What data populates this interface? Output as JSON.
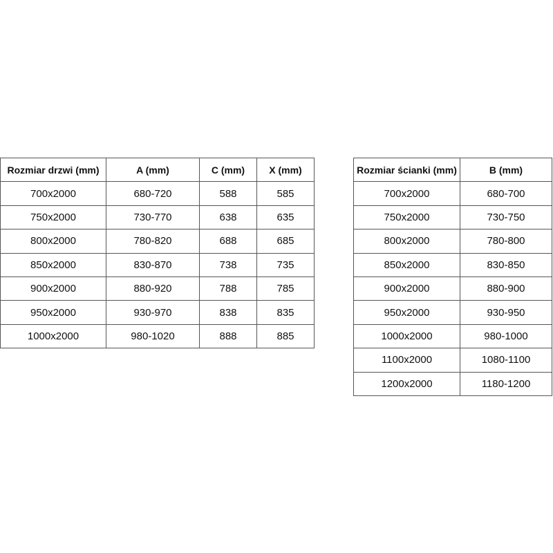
{
  "door_table": {
    "headers": [
      "Rozmiar drzwi (mm)",
      "A (mm)",
      "C (mm)",
      "X (mm)"
    ],
    "rows": [
      [
        "700x2000",
        "680-720",
        "588",
        "585"
      ],
      [
        "750x2000",
        "730-770",
        "638",
        "635"
      ],
      [
        "800x2000",
        "780-820",
        "688",
        "685"
      ],
      [
        "850x2000",
        "830-870",
        "738",
        "735"
      ],
      [
        "900x2000",
        "880-920",
        "788",
        "785"
      ],
      [
        "950x2000",
        "930-970",
        "838",
        "835"
      ],
      [
        "1000x2000",
        "980-1020",
        "888",
        "885"
      ]
    ]
  },
  "wall_table": {
    "headers": [
      "Rozmiar ścianki (mm)",
      "B (mm)"
    ],
    "rows": [
      [
        "700x2000",
        "680-700"
      ],
      [
        "750x2000",
        "730-750"
      ],
      [
        "800x2000",
        "780-800"
      ],
      [
        "850x2000",
        "830-850"
      ],
      [
        "900x2000",
        "880-900"
      ],
      [
        "950x2000",
        "930-950"
      ],
      [
        "1000x2000",
        "980-1000"
      ],
      [
        "1100x2000",
        "1080-1100"
      ],
      [
        "1200x2000",
        "1180-1200"
      ]
    ]
  }
}
